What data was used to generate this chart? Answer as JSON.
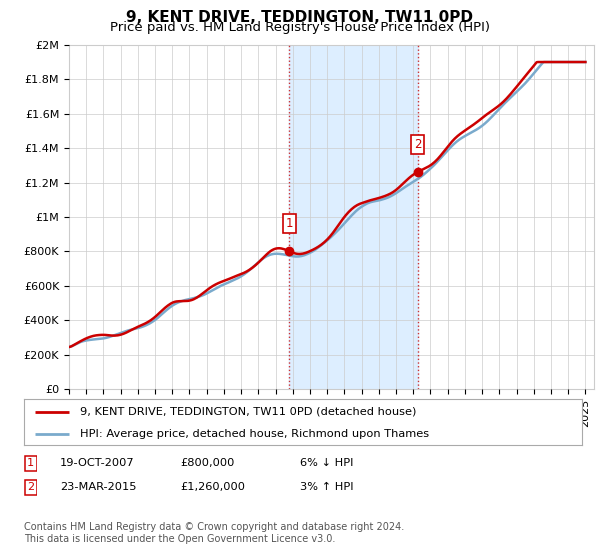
{
  "title": "9, KENT DRIVE, TEDDINGTON, TW11 0PD",
  "subtitle": "Price paid vs. HM Land Registry's House Price Index (HPI)",
  "ylabel_ticks": [
    "£0",
    "£200K",
    "£400K",
    "£600K",
    "£800K",
    "£1M",
    "£1.2M",
    "£1.4M",
    "£1.6M",
    "£1.8M",
    "£2M"
  ],
  "ytick_values": [
    0,
    200000,
    400000,
    600000,
    800000,
    1000000,
    1200000,
    1400000,
    1600000,
    1800000,
    2000000
  ],
  "ylim": [
    0,
    2000000
  ],
  "year_start": 1995,
  "year_end": 2025,
  "transaction1_year": 2007.8,
  "transaction2_year": 2015.25,
  "transaction1_price": 800000,
  "transaction2_price": 1260000,
  "legend_line1": "9, KENT DRIVE, TEDDINGTON, TW11 0PD (detached house)",
  "legend_line2": "HPI: Average price, detached house, Richmond upon Thames",
  "table_row1": [
    "1",
    "19-OCT-2007",
    "£800,000",
    "6% ↓ HPI"
  ],
  "table_row2": [
    "2",
    "23-MAR-2015",
    "£1,260,000",
    "3% ↑ HPI"
  ],
  "footnote": "Contains HM Land Registry data © Crown copyright and database right 2024.\nThis data is licensed under the Open Government Licence v3.0.",
  "line_color_red": "#cc0000",
  "line_color_blue": "#7aaacc",
  "shade_color": "#ddeeff",
  "bg_color": "#ffffff",
  "grid_color": "#cccccc",
  "title_fontsize": 11,
  "subtitle_fontsize": 9.5,
  "tick_fontsize": 8
}
